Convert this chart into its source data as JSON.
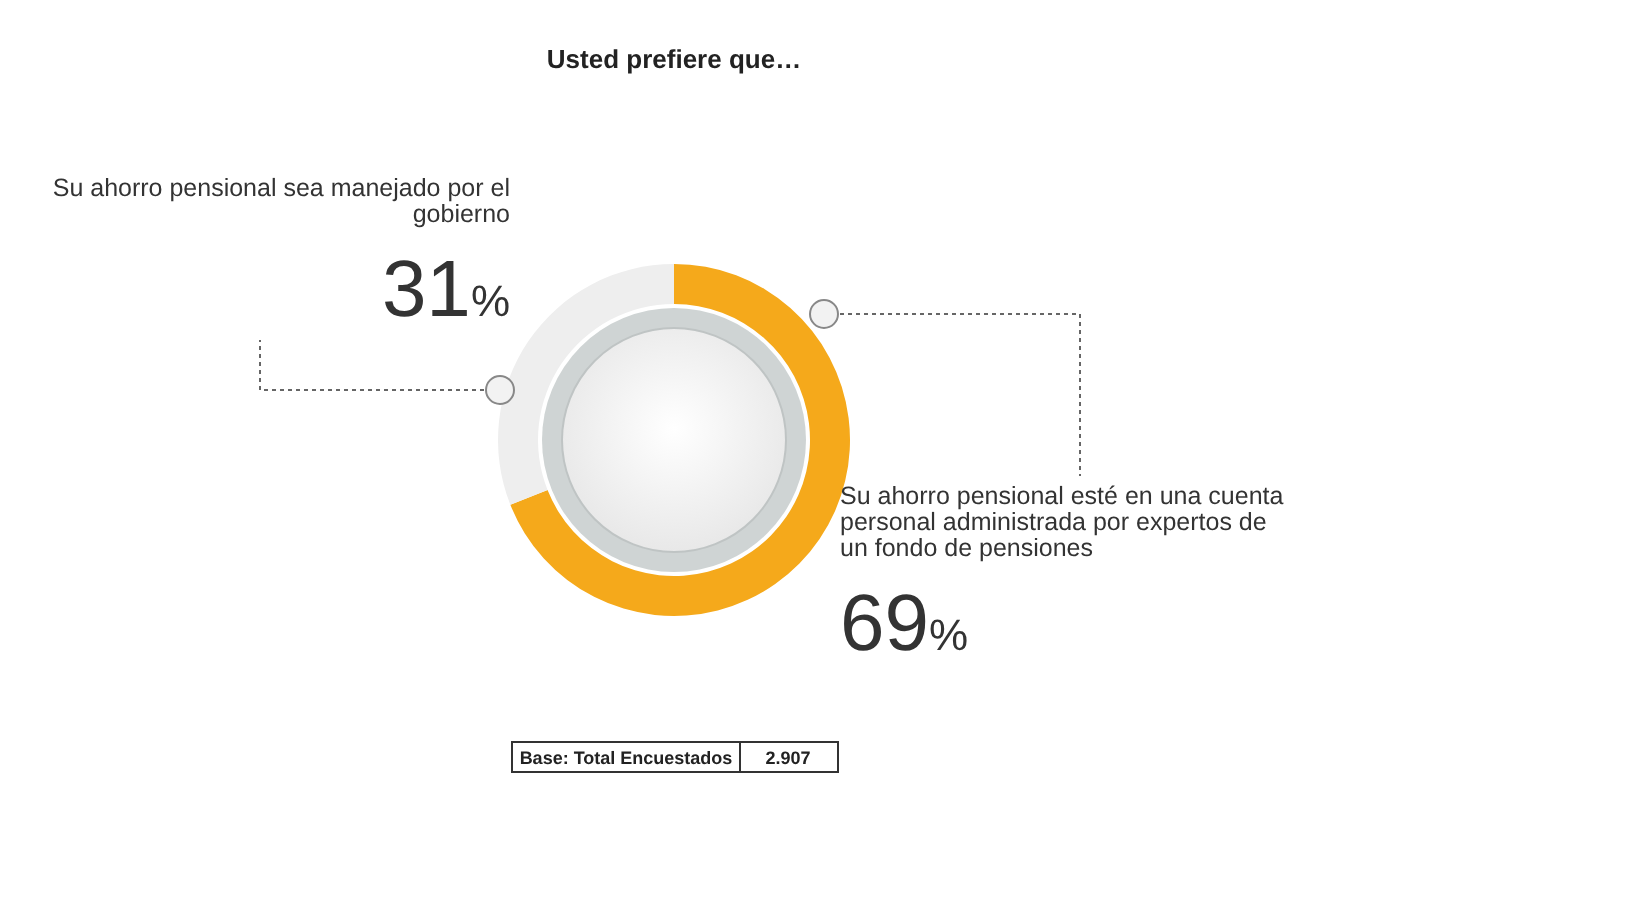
{
  "chart_data": {
    "type": "donut",
    "title": "Usted prefiere que…",
    "categories": [
      "Su ahorro pensional esté en una cuenta personal administrada por expertos de un fondo de pensiones",
      "Su ahorro pensional sea manejado por el gobierno"
    ],
    "values": [
      69,
      31
    ],
    "colors": [
      "#f5a91b",
      "#eeeeee"
    ],
    "value_labels": [
      "69%",
      "31%"
    ],
    "annotations": [
      "Base: Total Encuestados",
      "2.907"
    ]
  }
}
